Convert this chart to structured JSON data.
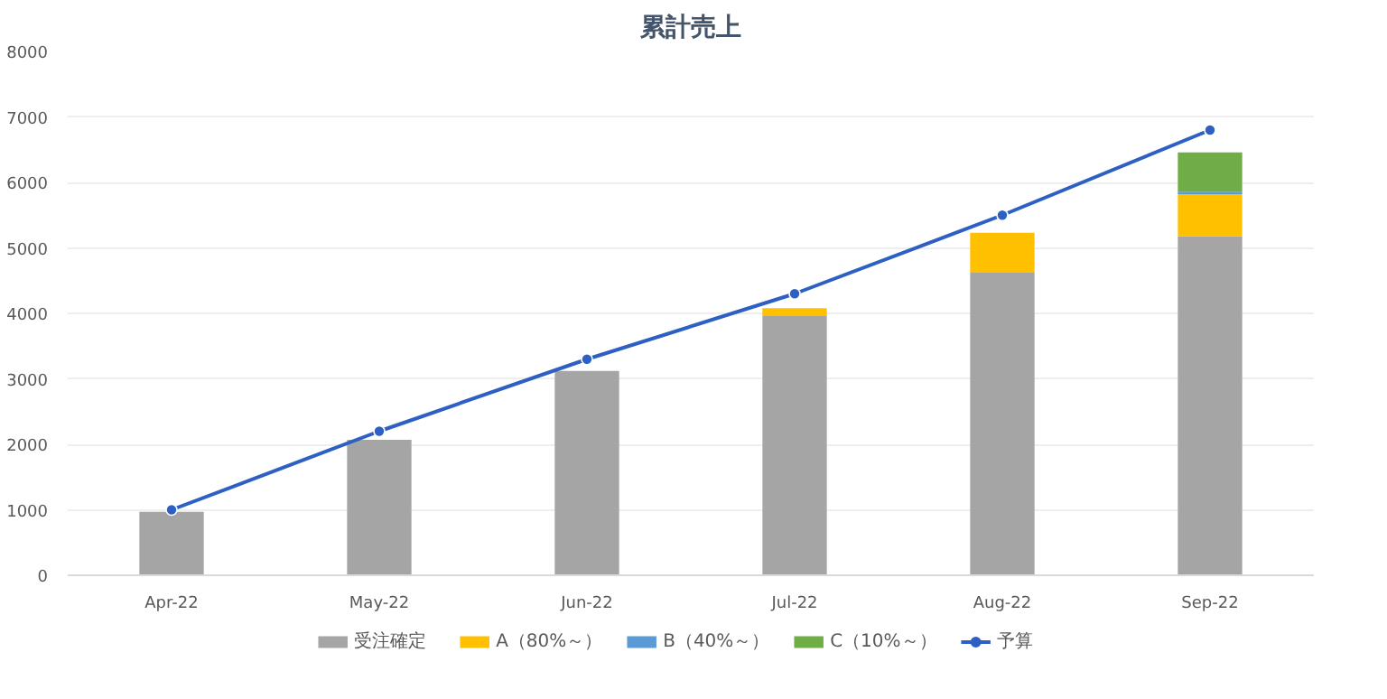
{
  "chart_data": {
    "type": "bar",
    "title": "累計売上",
    "stacked": true,
    "categories": [
      "Apr-22",
      "May-22",
      "Jun-22",
      "Jul-22",
      "Aug-22",
      "Sep-22"
    ],
    "series": [
      {
        "name": "受注確定",
        "color": "#a5a5a5",
        "values": [
          970,
          2070,
          3120,
          3970,
          4630,
          5180
        ]
      },
      {
        "name": "A（80%～）",
        "color": "#ffc000",
        "values": [
          null,
          null,
          null,
          110,
          600,
          640
        ]
      },
      {
        "name": "B（40%～）",
        "color": "#5b9bd5",
        "values": [
          null,
          null,
          null,
          null,
          null,
          40
        ]
      },
      {
        "name": "C（10%～）",
        "color": "#70ad47",
        "values": [
          null,
          null,
          null,
          null,
          null,
          600
        ]
      },
      {
        "name": "予算",
        "color": "#2e5fc2",
        "type": "line",
        "values": [
          1000,
          2200,
          3300,
          4300,
          5500,
          6800
        ]
      }
    ],
    "ylim": [
      0,
      8000
    ],
    "yticks": [
      0,
      1000,
      2000,
      3000,
      4000,
      5000,
      6000,
      7000,
      8000
    ],
    "grid": "y",
    "legend": "bottom",
    "marker": "circle",
    "line_style": "solid"
  }
}
